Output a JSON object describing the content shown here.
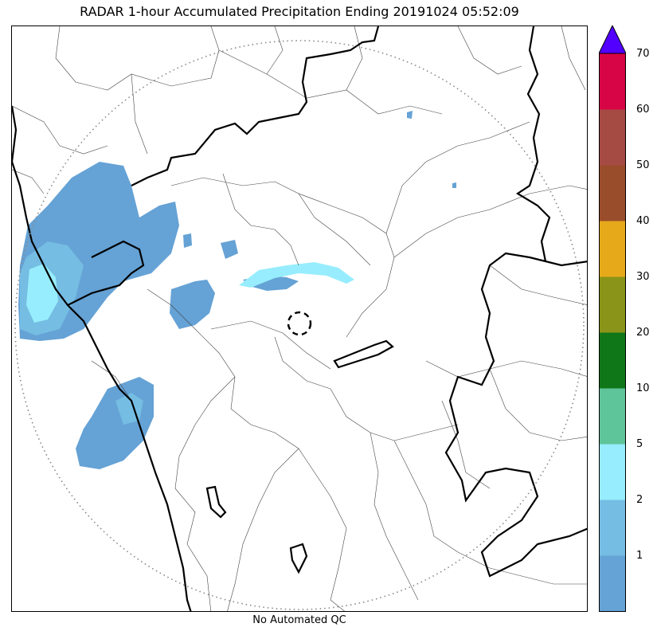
{
  "title": "RADAR 1-hour Accumulated Precipitation Ending 20191024 05:52:09",
  "footer": "No Automated QC",
  "legend": {
    "bins": [
      {
        "from": 0,
        "to": 1,
        "color": "#65a2d5"
      },
      {
        "from": 1,
        "to": 2,
        "color": "#75bde3"
      },
      {
        "from": 2,
        "to": 5,
        "color": "#97edfd"
      },
      {
        "from": 5,
        "to": 10,
        "color": "#5ec49a"
      },
      {
        "from": 10,
        "to": 20,
        "color": "#0f7718"
      },
      {
        "from": 20,
        "to": 30,
        "color": "#8a9418"
      },
      {
        "from": 30,
        "to": 40,
        "color": "#e6a91a"
      },
      {
        "from": 40,
        "to": 50,
        "color": "#9a4d2a"
      },
      {
        "from": 50,
        "to": 60,
        "color": "#a64a44"
      },
      {
        "from": 60,
        "to": 70,
        "color": "#d80546"
      }
    ],
    "extend_color": "#5200ff",
    "tick_labels": [
      "1",
      "2",
      "5",
      "10",
      "20",
      "30",
      "40",
      "50",
      "60",
      "70"
    ]
  },
  "map": {
    "range_ring": "dotted",
    "radar_site_marker": "dashed-circle",
    "precip_colors": {
      "light": "#65a2d5",
      "moderate": "#75bde3",
      "heavy": "#97edfd"
    }
  }
}
